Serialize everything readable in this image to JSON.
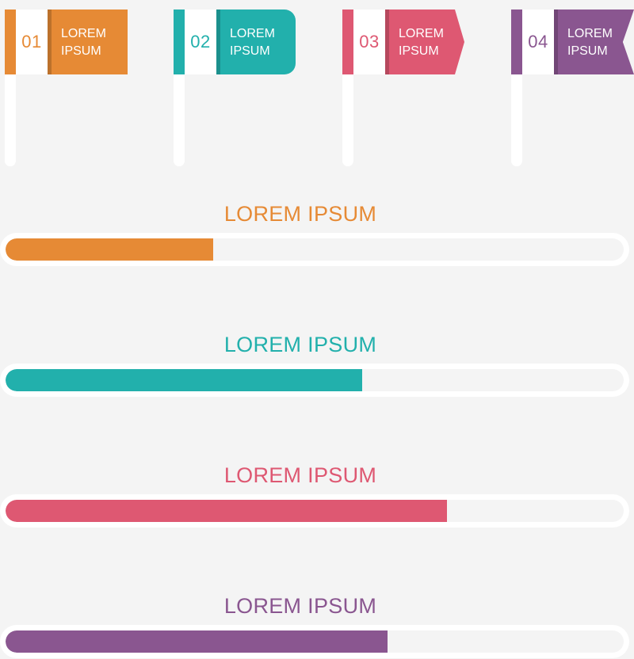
{
  "colors": {
    "background": "#f4f4f4",
    "orange": "#e68a35",
    "teal": "#22b0ac",
    "pink": "#de5872",
    "purple": "#8a5690"
  },
  "flags": [
    {
      "number": "01",
      "line1": "LOREM",
      "line2": "IPSUM",
      "color": "#e68a35"
    },
    {
      "number": "02",
      "line1": "LOREM",
      "line2": "IPSUM",
      "color": "#22b0ac"
    },
    {
      "number": "03",
      "line1": "LOREM",
      "line2": "IPSUM",
      "color": "#de5872"
    },
    {
      "number": "04",
      "line1": "LOREM",
      "line2": "IPSUM",
      "color": "#8a5690"
    }
  ],
  "progress": [
    {
      "label": "LOREM IPSUM",
      "percent": 33.6,
      "color": "#e68a35"
    },
    {
      "label": "LOREM IPSUM",
      "percent": 57.7,
      "color": "#22b0ac"
    },
    {
      "label": "LOREM IPSUM",
      "percent": 71.4,
      "color": "#de5872"
    },
    {
      "label": "LOREM IPSUM",
      "percent": 61.8,
      "color": "#8a5690"
    }
  ]
}
